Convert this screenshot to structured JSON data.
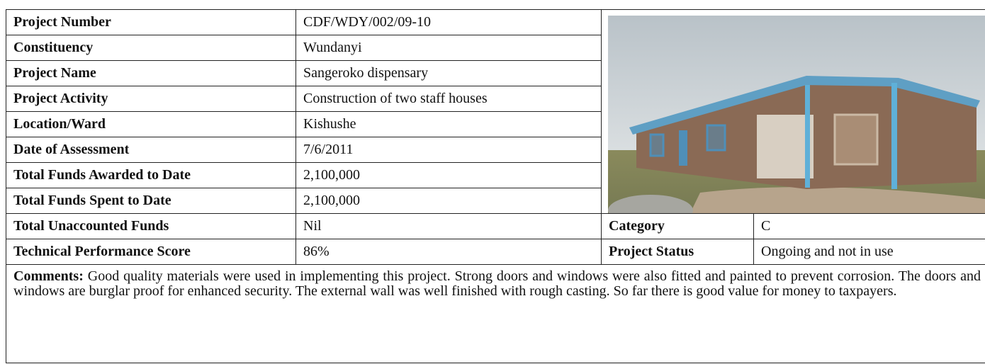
{
  "table": {
    "rows": [
      [
        "Project Number",
        "CDF/WDY/002/09-10"
      ],
      [
        "Constituency",
        "Wundanyi"
      ],
      [
        "Project Name",
        "Sangeroko dispensary"
      ],
      [
        "Project Activity",
        "Construction of two staff houses"
      ],
      [
        "Location/Ward",
        "Kishushe"
      ],
      [
        "Date of Assessment",
        "7/6/2011"
      ],
      [
        "Total Funds Awarded to Date",
        "2,100,000"
      ],
      [
        "Total Funds Spent to Date",
        "2,100,000"
      ],
      [
        "Total Unaccounted Funds",
        "Nil",
        "Category",
        "C"
      ],
      [
        "Technical Performance Score",
        "86%",
        "Project Status",
        "Ongoing and not in use"
      ]
    ],
    "comments": {
      "label": "Comments:",
      "text": "Good quality materials were used in implementing this project. Strong doors and windows were also fitted and painted to prevent corrosion. The doors and windows are burglar proof for enhanced security. The external wall was well finished with rough casting. So far there is good value for money to taxpayers."
    }
  }
}
